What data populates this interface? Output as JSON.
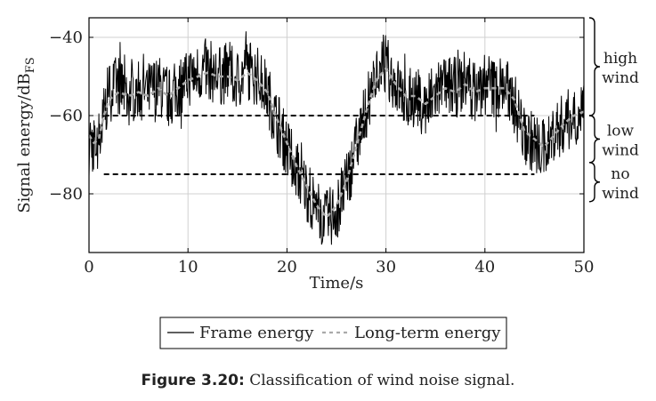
{
  "chart_data": {
    "type": "line",
    "xlabel": "Time/s",
    "ylabel_main": "Signal energy/dB",
    "ylabel_sub": "FS",
    "xlim": [
      0,
      50
    ],
    "ylim": [
      -95,
      -35
    ],
    "xticks": [
      0,
      10,
      20,
      30,
      40,
      50
    ],
    "yticks": [
      -80,
      -60,
      -40
    ],
    "xtick_labels": [
      "0",
      "10",
      "20",
      "30",
      "40",
      "50"
    ],
    "ytick_labels": [
      "−80",
      "−60",
      "−40"
    ],
    "grid": true,
    "thresholds": [
      -60,
      -75
    ],
    "threshold_style": "dashed",
    "legend_position": "bottom-center",
    "series": [
      {
        "name": "Frame energy",
        "style": "solid",
        "color": "#000000",
        "x": [
          0,
          0.5,
          1,
          1.5,
          2,
          3,
          4,
          5,
          6,
          7,
          8,
          9,
          10,
          11,
          12,
          13,
          14,
          15,
          16,
          17,
          18,
          19,
          20,
          21,
          22,
          23,
          24,
          25,
          26,
          27,
          28,
          29,
          30,
          31,
          32,
          33,
          34,
          35,
          36,
          37,
          38,
          39,
          40,
          41,
          42,
          43,
          44,
          45,
          46,
          47,
          48,
          49,
          50
        ],
        "y": [
          -65,
          -68,
          -66,
          -60,
          -54,
          -52,
          -55,
          -53,
          -54,
          -52,
          -56,
          -53,
          -50,
          -49,
          -48,
          -50,
          -49,
          -51,
          -48,
          -50,
          -54,
          -62,
          -68,
          -74,
          -79,
          -84,
          -87,
          -84,
          -78,
          -68,
          -58,
          -50,
          -47,
          -52,
          -56,
          -55,
          -58,
          -54,
          -52,
          -53,
          -51,
          -54,
          -52,
          -53,
          -52,
          -57,
          -65,
          -67,
          -69,
          -64,
          -62,
          -60,
          -58
        ]
      },
      {
        "name": "Long-term energy",
        "style": "dashed",
        "color": "#aaaaaa",
        "x": [
          0,
          0.5,
          1,
          1.5,
          2,
          3,
          4,
          5,
          6,
          7,
          8,
          9,
          10,
          11,
          12,
          13,
          14,
          15,
          16,
          17,
          18,
          19,
          20,
          21,
          22,
          23,
          24,
          25,
          26,
          27,
          28,
          29,
          30,
          31,
          32,
          33,
          34,
          35,
          36,
          37,
          38,
          39,
          40,
          41,
          42,
          43,
          44,
          45,
          46,
          47,
          48,
          49,
          50
        ],
        "y": [
          -65,
          -67,
          -66,
          -60,
          -56,
          -54,
          -55,
          -54,
          -55,
          -53,
          -55,
          -53,
          -51,
          -50,
          -49,
          -50,
          -50,
          -51,
          -49,
          -51,
          -54,
          -61,
          -67,
          -73,
          -78,
          -83,
          -86,
          -83,
          -77,
          -68,
          -59,
          -51,
          -48,
          -52,
          -55,
          -55,
          -57,
          -55,
          -53,
          -54,
          -52,
          -54,
          -53,
          -53,
          -53,
          -56,
          -64,
          -66,
          -68,
          -65,
          -62,
          -60,
          -59
        ]
      }
    ],
    "bands": [
      {
        "label_line1": "high",
        "label_line2": "wind",
        "from": -60,
        "to": -35
      },
      {
        "label_line1": "low",
        "label_line2": "wind",
        "from": -72,
        "to": -60
      },
      {
        "label_line1": "no",
        "label_line2": "wind",
        "from": -82,
        "to": -72
      }
    ]
  },
  "caption": {
    "label": "Figure 3.20:",
    "text": "Classification of wind noise signal."
  }
}
